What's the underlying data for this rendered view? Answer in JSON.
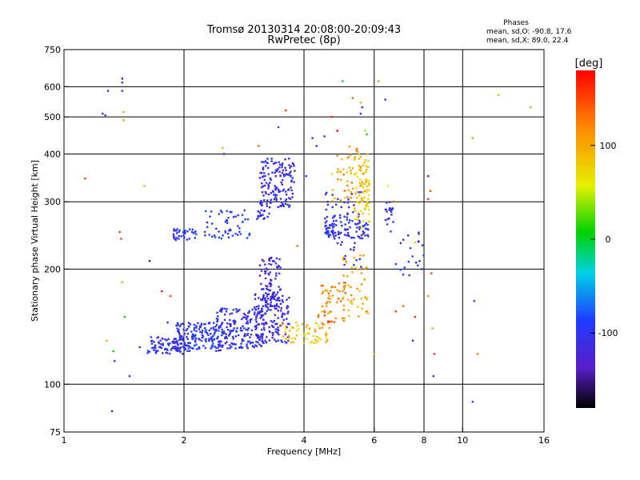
{
  "chart_data": {
    "type": "scatter",
    "title": "Tromsø 20130314 20:08:00-20:09:43",
    "subtitle": "RwPretec (8p)",
    "xlabel": "Frequency [MHz]",
    "ylabel": "Stationary phase Virtual Height [km]",
    "x_scale": "log",
    "y_scale": "log",
    "xlim": [
      1,
      16
    ],
    "ylim": [
      75,
      750
    ],
    "x_ticks": [
      1,
      2,
      4,
      6,
      8,
      10,
      16
    ],
    "y_ticks": [
      75,
      100,
      200,
      300,
      400,
      500,
      600,
      750
    ],
    "x_grid": [
      2,
      4,
      6,
      8,
      10
    ],
    "y_grid": [
      100,
      200,
      300,
      400,
      500,
      600
    ],
    "grid": true,
    "stats": {
      "title": "Phases",
      "line_o": "mean, sd,O: -90.8, 17.6",
      "line_x": "mean, sd,X:  89.0, 22.4"
    },
    "colorbar": {
      "label": "[deg]",
      "range": [
        -180,
        180
      ],
      "ticks": [
        "100",
        "0",
        "-100"
      ],
      "tick_values": [
        100,
        0,
        -100
      ],
      "placement": "right"
    },
    "point_phase_note_colors": {
      "blue": "#1e3cff",
      "navy": "#2a20c8",
      "violet": "#5a1ec8",
      "cyan": "#00c8e6",
      "green": "#20c030",
      "yellow": "#e6e600",
      "orange": "#ff9600",
      "red": "#e61e1e"
    },
    "clusters": [
      {
        "fmin": 1.62,
        "fmax": 2.05,
        "hmin": 120,
        "hmax": 133,
        "n": 90,
        "phase": [
          -120,
          -80
        ]
      },
      {
        "fmin": 1.9,
        "fmax": 2.5,
        "hmin": 122,
        "hmax": 145,
        "n": 160,
        "phase": [
          -120,
          -75
        ]
      },
      {
        "fmin": 2.4,
        "fmax": 3.2,
        "hmin": 124,
        "hmax": 158,
        "n": 190,
        "phase": [
          -125,
          -80
        ]
      },
      {
        "fmin": 3.0,
        "fmax": 3.7,
        "hmin": 128,
        "hmax": 172,
        "n": 140,
        "phase": [
          -130,
          -85
        ]
      },
      {
        "fmin": 3.1,
        "fmax": 3.5,
        "hmin": 160,
        "hmax": 215,
        "n": 80,
        "phase": [
          -135,
          -95
        ]
      },
      {
        "fmin": 3.5,
        "fmax": 4.6,
        "hmin": 128,
        "hmax": 145,
        "n": 55,
        "phase": [
          60,
          110
        ]
      },
      {
        "fmin": 4.3,
        "fmax": 5.1,
        "hmin": 140,
        "hmax": 185,
        "n": 60,
        "phase": [
          90,
          150
        ]
      },
      {
        "fmin": 5.0,
        "fmax": 5.8,
        "hmin": 150,
        "hmax": 220,
        "n": 45,
        "phase": [
          80,
          120
        ]
      },
      {
        "fmin": 1.88,
        "fmax": 2.15,
        "hmin": 238,
        "hmax": 255,
        "n": 35,
        "phase": [
          -110,
          -80
        ]
      },
      {
        "fmin": 2.25,
        "fmax": 2.95,
        "hmin": 240,
        "hmax": 285,
        "n": 55,
        "phase": [
          -110,
          -75
        ]
      },
      {
        "fmin": 3.05,
        "fmax": 3.3,
        "hmin": 270,
        "hmax": 300,
        "n": 25,
        "phase": [
          -120,
          -90
        ]
      },
      {
        "fmin": 3.1,
        "fmax": 3.8,
        "hmin": 290,
        "hmax": 390,
        "n": 140,
        "phase": [
          -125,
          -85
        ]
      },
      {
        "fmin": 4.5,
        "fmax": 5.3,
        "hmin": 240,
        "hmax": 280,
        "n": 60,
        "phase": [
          -110,
          -80
        ]
      },
      {
        "fmin": 4.5,
        "fmax": 5.6,
        "hmin": 200,
        "hmax": 320,
        "n": 55,
        "phase": [
          -130,
          -90
        ]
      },
      {
        "fmin": 4.7,
        "fmax": 5.8,
        "hmin": 300,
        "hmax": 420,
        "n": 55,
        "phase": [
          80,
          140
        ]
      },
      {
        "fmin": 5.35,
        "fmax": 5.85,
        "hmin": 240,
        "hmax": 400,
        "n": 70,
        "phase": [
          60,
          100
        ]
      },
      {
        "fmin": 5.4,
        "fmax": 5.8,
        "hmin": 240,
        "hmax": 265,
        "n": 25,
        "phase": [
          -110,
          -90
        ]
      },
      {
        "fmin": 6.4,
        "fmax": 6.7,
        "hmin": 250,
        "hmax": 300,
        "n": 20,
        "phase": [
          -115,
          -90
        ]
      },
      {
        "fmin": 6.8,
        "fmax": 8.0,
        "hmin": 190,
        "hmax": 250,
        "n": 18,
        "phase": [
          -120,
          -80
        ]
      }
    ],
    "points": [
      [
        1.13,
        345,
        150
      ],
      [
        1.25,
        510,
        -100
      ],
      [
        1.27,
        505,
        -100
      ],
      [
        1.29,
        585,
        -100
      ],
      [
        1.4,
        630,
        -140
      ],
      [
        1.4,
        615,
        -100
      ],
      [
        1.4,
        585,
        -120
      ],
      [
        1.41,
        515,
        100
      ],
      [
        1.41,
        490,
        110
      ],
      [
        1.38,
        250,
        160
      ],
      [
        1.39,
        240,
        150
      ],
      [
        1.59,
        330,
        40
      ],
      [
        1.4,
        185,
        30
      ],
      [
        1.42,
        150,
        10
      ],
      [
        1.46,
        105,
        -100
      ],
      [
        1.34,
        115,
        -100
      ],
      [
        1.33,
        122,
        10
      ],
      [
        1.28,
        130,
        100
      ],
      [
        1.32,
        85,
        -100
      ],
      [
        1.55,
        125,
        -120
      ],
      [
        1.64,
        210,
        -150
      ],
      [
        1.76,
        175,
        170
      ],
      [
        1.82,
        145,
        -110
      ],
      [
        1.85,
        170,
        150
      ],
      [
        2.5,
        415,
        100
      ],
      [
        2.52,
        400,
        -110
      ],
      [
        3.08,
        420,
        140
      ],
      [
        3.45,
        470,
        -100
      ],
      [
        3.6,
        520,
        160
      ],
      [
        3.4,
        350,
        -110
      ],
      [
        4.05,
        350,
        -100
      ],
      [
        4.2,
        440,
        -100
      ],
      [
        4.3,
        420,
        -110
      ],
      [
        4.5,
        445,
        -100
      ],
      [
        4.7,
        500,
        160
      ],
      [
        4.85,
        460,
        180
      ],
      [
        5.0,
        620,
        0
      ],
      [
        5.3,
        560,
        140
      ],
      [
        5.55,
        545,
        90
      ],
      [
        5.6,
        530,
        -100
      ],
      [
        5.55,
        510,
        -110
      ],
      [
        5.7,
        460,
        40
      ],
      [
        5.75,
        450,
        10
      ],
      [
        6.15,
        620,
        120
      ],
      [
        6.4,
        555,
        -100
      ],
      [
        6.5,
        330,
        60
      ],
      [
        6.7,
        300,
        140
      ],
      [
        7.3,
        245,
        -120
      ],
      [
        7.6,
        235,
        80
      ],
      [
        7.8,
        210,
        -100
      ],
      [
        7.9,
        200,
        -110
      ],
      [
        8.2,
        350,
        -100
      ],
      [
        8.3,
        320,
        140
      ],
      [
        8.2,
        305,
        160
      ],
      [
        8.35,
        195,
        150
      ],
      [
        8.4,
        140,
        100
      ],
      [
        8.5,
        120,
        160
      ],
      [
        8.45,
        105,
        -100
      ],
      [
        8.2,
        170,
        120
      ],
      [
        7.6,
        150,
        160
      ],
      [
        7.5,
        130,
        -100
      ],
      [
        7.1,
        160,
        140
      ],
      [
        6.8,
        155,
        150
      ],
      [
        10.6,
        440,
        30
      ],
      [
        10.7,
        165,
        -110
      ],
      [
        10.9,
        120,
        120
      ],
      [
        10.6,
        90,
        -100
      ],
      [
        12.3,
        570,
        40
      ],
      [
        14.8,
        530,
        110
      ],
      [
        6.0,
        120,
        100
      ],
      [
        4.6,
        145,
        150
      ],
      [
        3.85,
        230,
        140
      ]
    ]
  }
}
